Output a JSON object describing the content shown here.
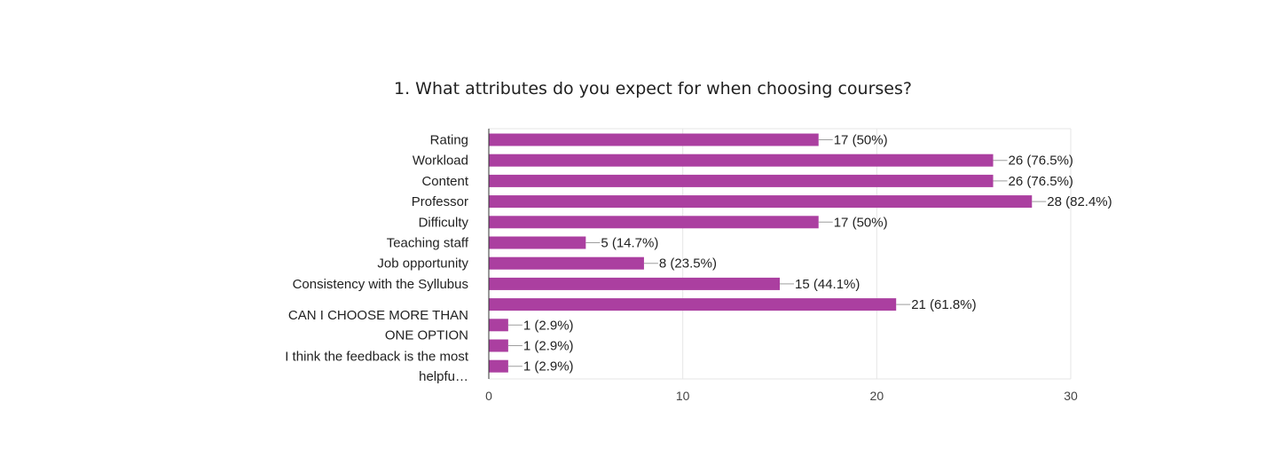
{
  "chart_data": {
    "type": "bar",
    "orientation": "horizontal",
    "title": "1. What attributes do you expect for when choosing courses?",
    "categories": [
      [
        "Rating"
      ],
      [
        "Workload"
      ],
      [
        "Content"
      ],
      [
        "Professor"
      ],
      [
        "Difficulty"
      ],
      [
        "Teaching staff"
      ],
      [
        "Job opportunity"
      ],
      [
        "Consistency with the Syllubus"
      ],
      [],
      [
        "CAN I CHOOSE MORE THAN",
        "ONE OPTION"
      ],
      [],
      [
        "I think the feedback is the most",
        "helpfu…"
      ]
    ],
    "values": [
      17,
      26,
      26,
      28,
      17,
      5,
      8,
      15,
      21,
      1,
      1,
      1
    ],
    "data_labels": [
      "17 (50%)",
      "26 (76.5%)",
      "26 (76.5%)",
      "28 (82.4%)",
      "17 (50%)",
      "5 (14.7%)",
      "8 (23.5%)",
      "15 (44.1%)",
      "21 (61.8%)",
      "1 (2.9%)",
      "1 (2.9%)",
      "1 (2.9%)"
    ],
    "xlim": [
      0,
      30
    ],
    "xticks": [
      0,
      10,
      20,
      30
    ],
    "xlabel": "",
    "ylabel": "",
    "grid": true,
    "bar_color": "#ab3fa0"
  }
}
